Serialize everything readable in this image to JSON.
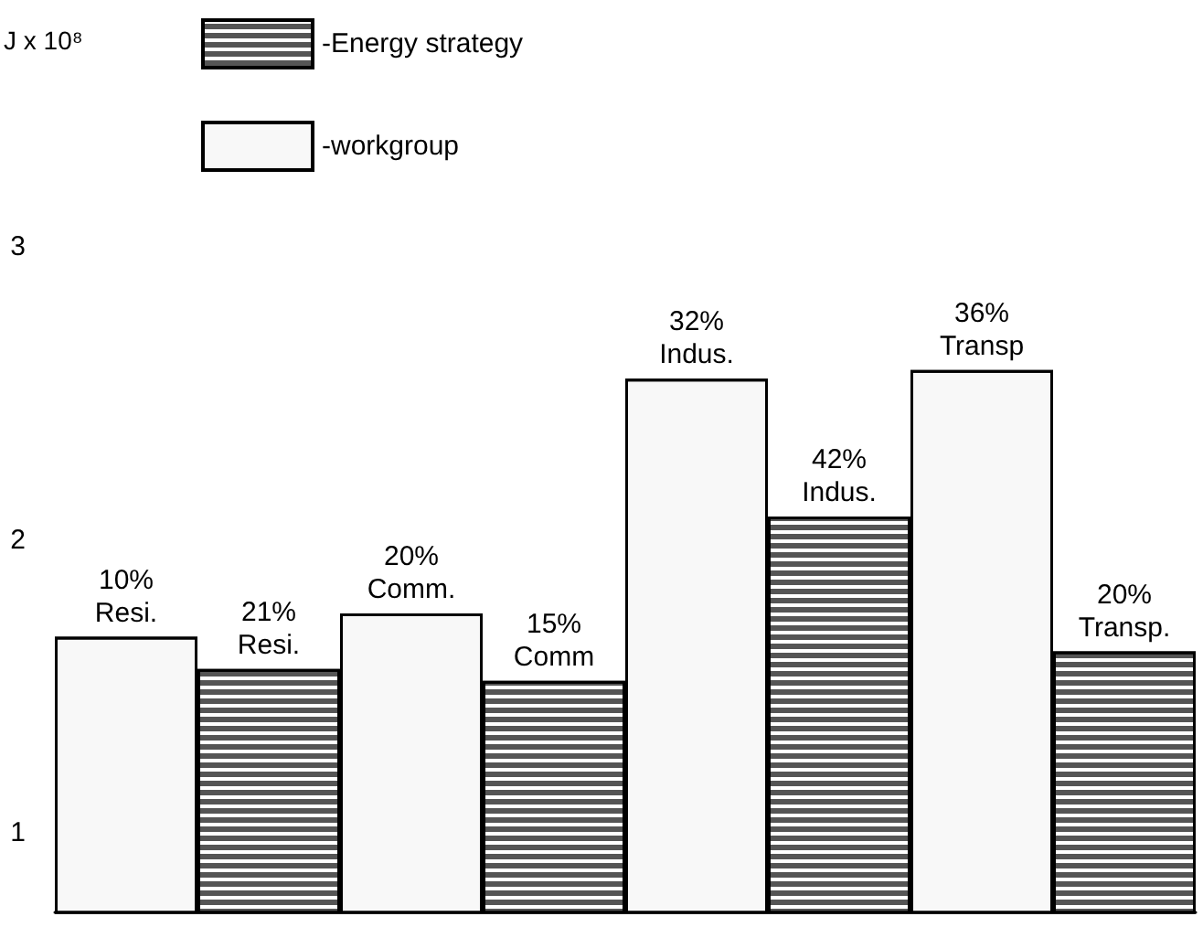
{
  "chart_data": {
    "type": "bar",
    "categories": [
      null,
      null,
      null,
      null,
      null,
      null,
      null,
      null
    ],
    "series": [
      {
        "name": "-Energy strategy",
        "color": "#555555",
        "values": [
          null,
          1.56,
          null,
          1.52,
          null,
          2.08,
          null,
          1.62
        ]
      },
      {
        "name": "-workgroup",
        "color": "#f8f8f8",
        "values": [
          1.67,
          null,
          1.75,
          null,
          2.55,
          null,
          2.58,
          null
        ]
      }
    ],
    "annotations": [
      "J x 10⁸",
      {
        "text": "10%\nResi.",
        "y": 1.67
      },
      {
        "text": "21%\nResi.",
        "y": 1.56
      },
      {
        "text": "20%\nComm.",
        "y": 1.75
      },
      {
        "text": "15%\nComm",
        "y": 1.52
      },
      {
        "text": "32%\nIndus.",
        "y": 2.55
      },
      {
        "text": "42%\nIndus.",
        "y": 2.08
      },
      {
        "text": "36%\nTransp",
        "y": 2.58
      },
      {
        "text": "20%\nTransp.",
        "y": 1.62
      }
    ],
    "ylim": [
      0.73,
      3
    ],
    "yticks": [
      1,
      2,
      3
    ],
    "grid": false,
    "legend": "top"
  }
}
